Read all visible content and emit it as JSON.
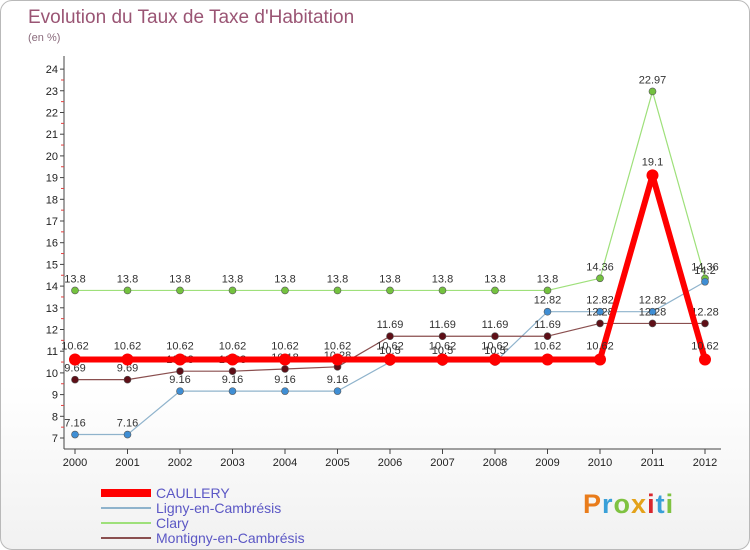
{
  "header": {
    "title": "Evolution du Taux de Taxe d'Habitation",
    "subtitle": "(en %)"
  },
  "brand": {
    "letters": [
      "P",
      "r",
      "o",
      "x",
      "i",
      "t",
      "i"
    ],
    "colors": [
      "#e97c1b",
      "#3aa0d8",
      "#7fc241",
      "#e4a21a",
      "#d8262e",
      "#3aa0d8",
      "#7fc241"
    ]
  },
  "chart_data": {
    "type": "line",
    "title": "Evolution du Taux de Taxe d'Habitation",
    "ylabel": "(en %)",
    "xlabel": "",
    "x": [
      "2000",
      "2001",
      "2002",
      "2003",
      "2004",
      "2005",
      "2006",
      "2007",
      "2008",
      "2009",
      "2010",
      "2011",
      "2012"
    ],
    "ylim": [
      7,
      24
    ],
    "yticks": [
      7,
      8,
      9,
      10,
      11,
      12,
      13,
      14,
      15,
      16,
      17,
      18,
      19,
      20,
      21,
      22,
      23,
      24
    ],
    "grid": false,
    "legend_position": "bottom-left",
    "series": [
      {
        "name": "Clary",
        "color": "#9ee07a",
        "marker": "#74c23f",
        "width": 1.2,
        "r": 3.5,
        "values": [
          13.8,
          13.8,
          13.8,
          13.8,
          13.8,
          13.8,
          13.8,
          13.8,
          13.8,
          13.8,
          14.36,
          22.97,
          14.36
        ],
        "labels": [
          "13.8",
          "13.8",
          "13.8",
          "13.8",
          "13.8",
          "13.8",
          "13.8",
          "13.8",
          "13.8",
          "13.8",
          "14.36",
          "22.97",
          "14.36"
        ]
      },
      {
        "name": "Ligny-en-Cambrésis",
        "color": "#8fb3cc",
        "marker": "#3f8ed4",
        "width": 1.2,
        "r": 3.5,
        "values": [
          7.16,
          7.16,
          9.16,
          9.16,
          9.16,
          9.16,
          10.5,
          10.5,
          10.5,
          12.82,
          12.82,
          12.82,
          14.2
        ],
        "labels": [
          "7.16",
          "7.16",
          "9.16",
          "9.16",
          "9.16",
          "9.16",
          "10.5",
          "10.5",
          "10.5",
          "12.82",
          "12.82",
          "12.82",
          "14.2"
        ]
      },
      {
        "name": "Montigny-en-Cambrésis",
        "color": "#8a4f4f",
        "marker": "#5e0f17",
        "width": 1.2,
        "r": 3.5,
        "values": [
          9.69,
          9.69,
          10.08,
          10.08,
          10.18,
          10.28,
          11.69,
          11.69,
          11.69,
          11.69,
          12.28,
          12.28,
          12.28
        ],
        "labels": [
          "9.69",
          "9.69",
          "10.08",
          "10.08",
          "10.18",
          "10.28",
          "11.69",
          "11.69",
          "11.69",
          "11.69",
          "12.28",
          "12.28",
          "12.28"
        ]
      },
      {
        "name": "CAULLERY",
        "color": "#ff0000",
        "marker": "#ff0000",
        "width": 6,
        "r": 6,
        "values": [
          10.62,
          10.62,
          10.62,
          10.62,
          10.62,
          10.62,
          10.62,
          10.62,
          10.62,
          10.62,
          10.62,
          19.1,
          10.62
        ],
        "labels": [
          "10.62",
          "10.62",
          "10.62",
          "10.62",
          "10.62",
          "10.62",
          "10.62",
          "10.62",
          "10.62",
          "10.62",
          "10.62",
          "19.1",
          "10.62"
        ]
      }
    ],
    "legend": [
      {
        "name": "CAULLERY",
        "color": "#ff0000",
        "width": 8
      },
      {
        "name": "Ligny-en-Cambrésis",
        "color": "#8fb3cc",
        "width": 2
      },
      {
        "name": "Clary",
        "color": "#9ee07a",
        "width": 2
      },
      {
        "name": "Montigny-en-Cambrésis",
        "color": "#8a4f4f",
        "width": 2
      }
    ]
  }
}
